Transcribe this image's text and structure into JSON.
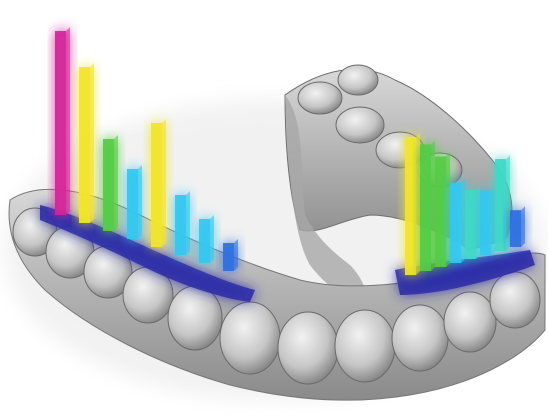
{
  "scene": {
    "subject": "dental-arch-with-3d-bar-overlay",
    "colors": {
      "background": "#ffffff",
      "tooth": "#c8c8c8",
      "tooth_shadow": "#7a7a7a",
      "base_blue": "#2a2aa8",
      "mid_blue": "#2f6fe0",
      "cyan": "#33c8f0",
      "teal": "#3fd9c8",
      "green": "#55cc44",
      "yellow": "#f2e52b",
      "magenta": "#d5259a"
    },
    "bar_levels": {
      "left_cluster": [
        {
          "color": "magenta",
          "level": 0.92
        },
        {
          "color": "yellow",
          "level": 0.78
        },
        {
          "color": "green",
          "level": 0.46
        },
        {
          "color": "cyan",
          "level": 0.35
        },
        {
          "color": "yellow",
          "level": 0.62
        },
        {
          "color": "cyan",
          "level": 0.3
        },
        {
          "color": "cyan",
          "level": 0.22
        },
        {
          "color": "mid_blue",
          "level": 0.14
        }
      ],
      "right_cluster": [
        {
          "color": "yellow",
          "level": 0.6
        },
        {
          "color": "green",
          "level": 0.55
        },
        {
          "color": "green",
          "level": 0.48
        },
        {
          "color": "cyan",
          "level": 0.35
        },
        {
          "color": "teal",
          "level": 0.3
        },
        {
          "color": "cyan",
          "level": 0.28
        },
        {
          "color": "teal",
          "level": 0.4
        },
        {
          "color": "mid_blue",
          "level": 0.16
        }
      ]
    }
  }
}
